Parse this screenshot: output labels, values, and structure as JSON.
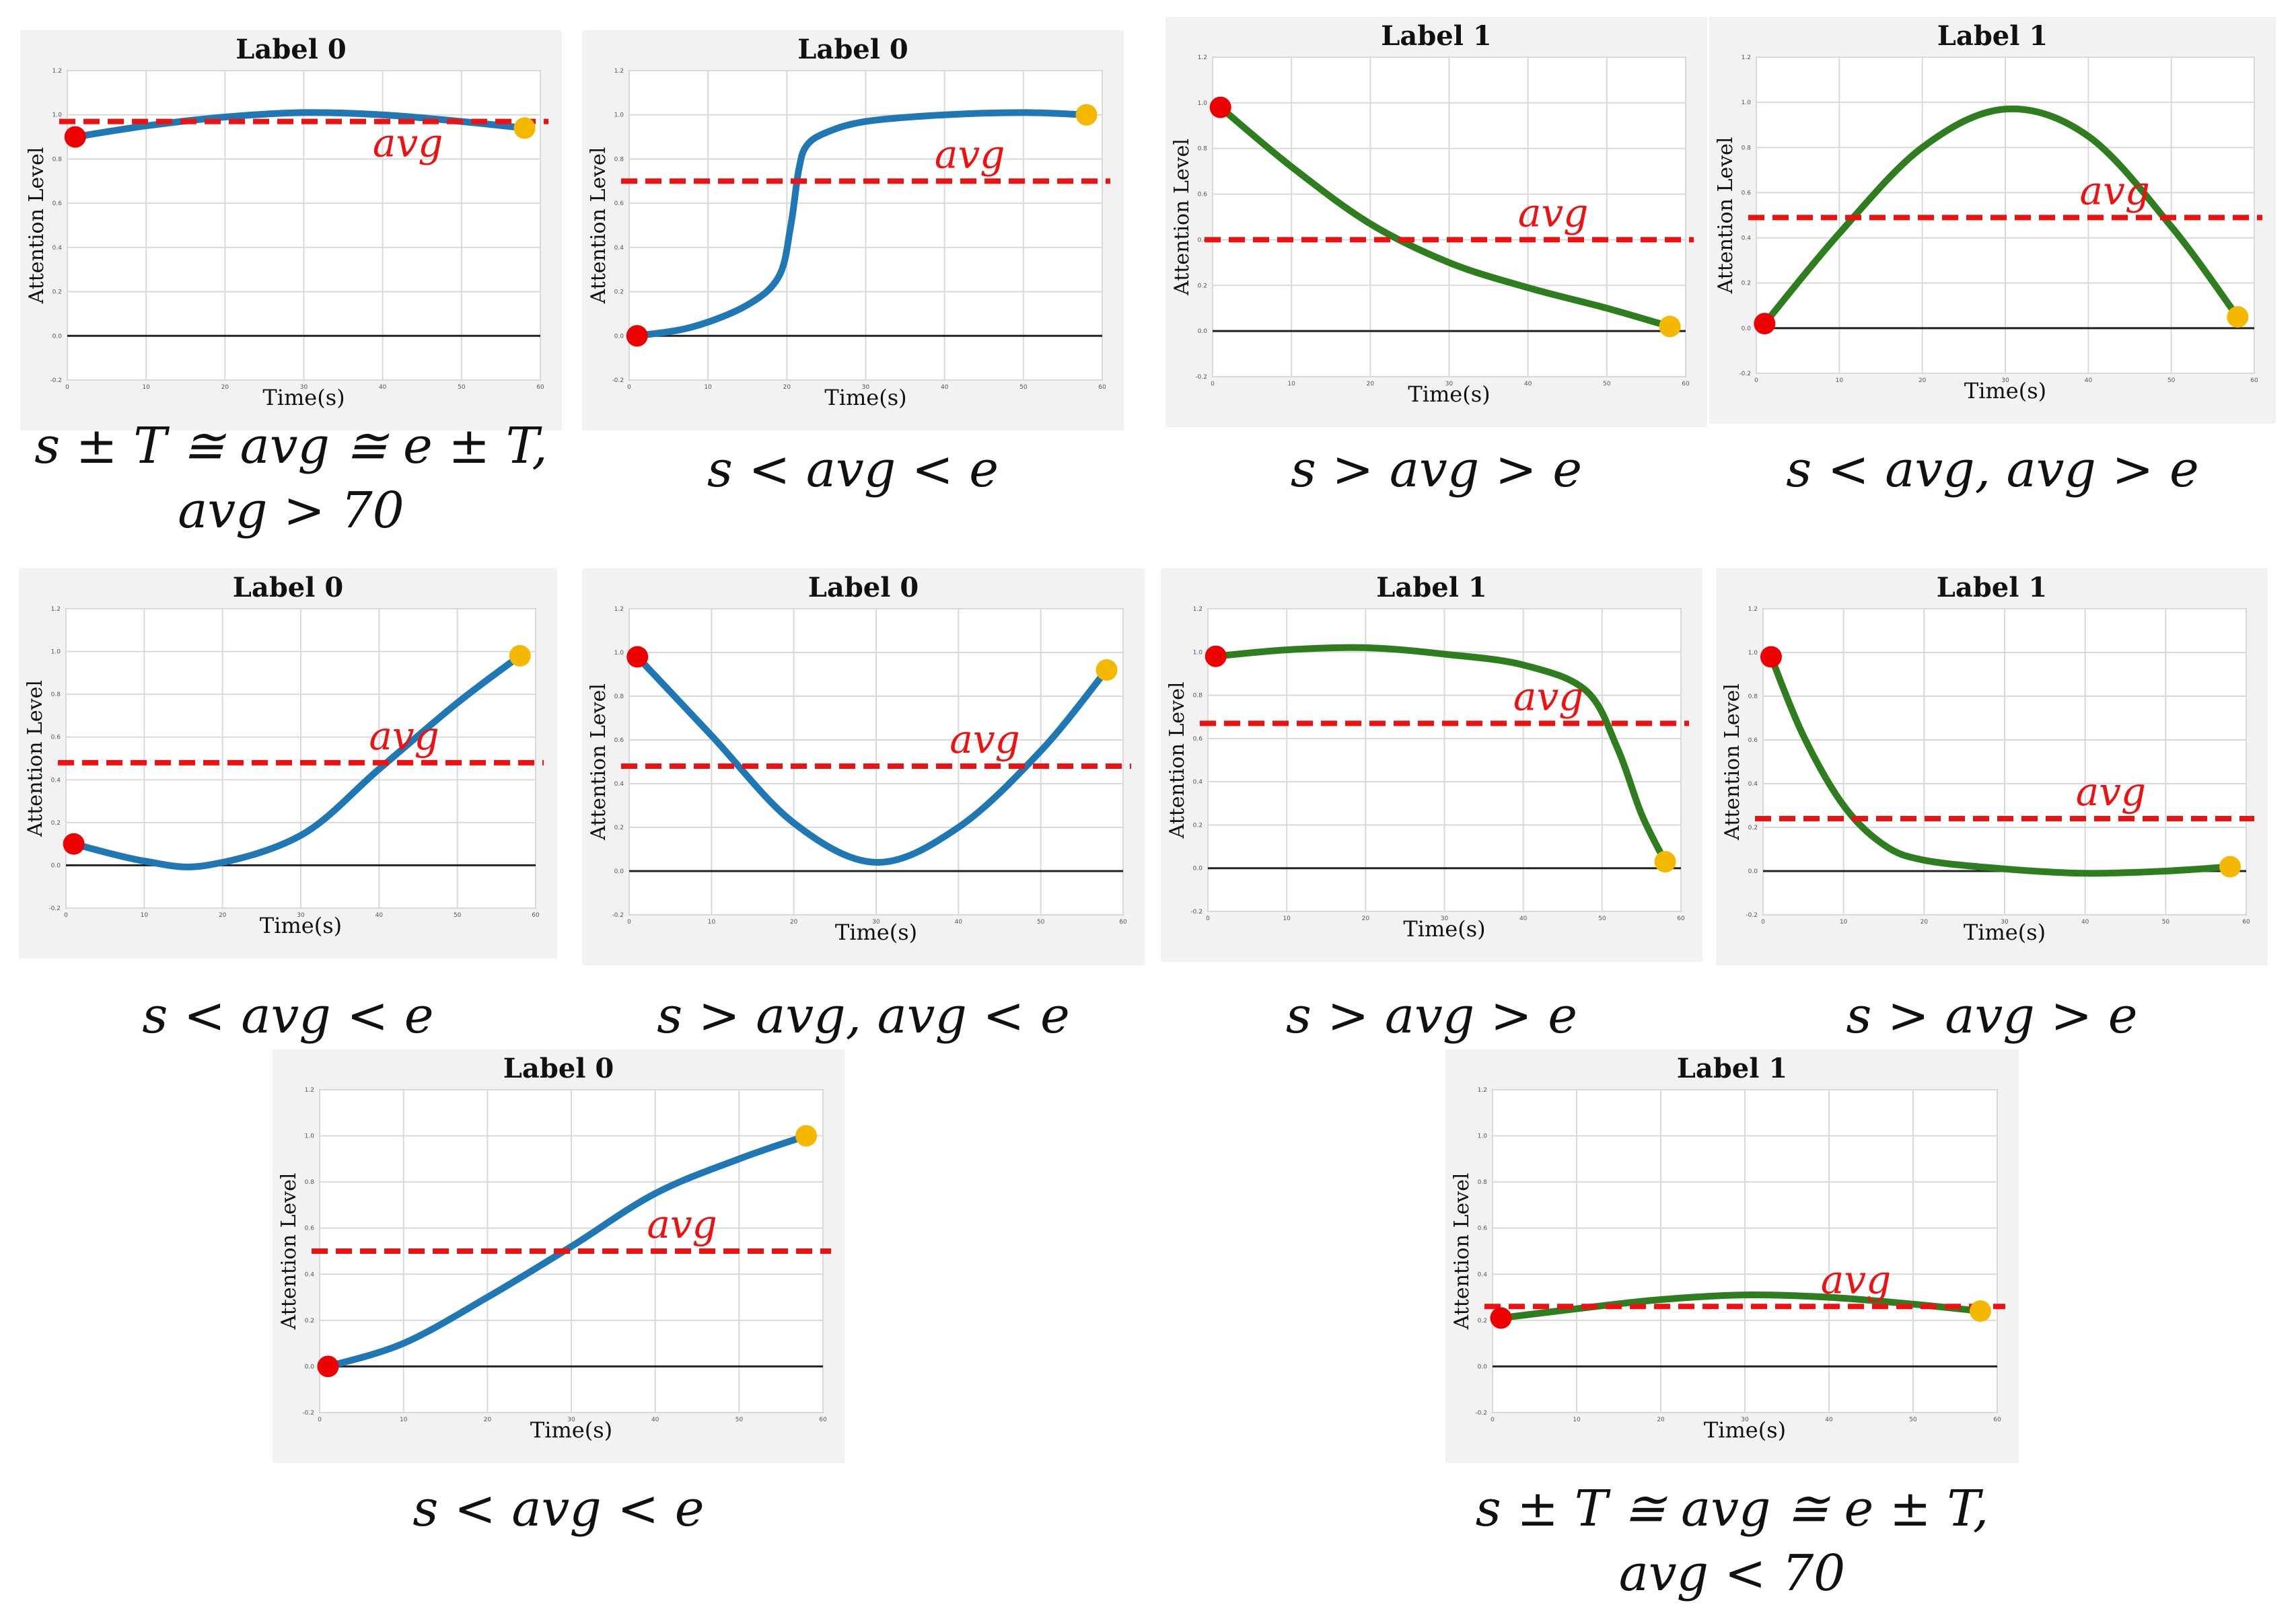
{
  "colors": {
    "label0_curve": "#1f77b4",
    "label1_curve": "#2e7d1e",
    "avg_line": "#ee1111",
    "start_dot": "#ee0000",
    "end_dot": "#f5b800",
    "panel_bg": "#f2f2f2",
    "grid": "#d9d9d9"
  },
  "common": {
    "ylabel": "Attention Level",
    "xlabel": "Time(s)",
    "avg_label": "avg",
    "xticks": [
      "0",
      "10",
      "20",
      "30",
      "40",
      "50",
      "60"
    ],
    "yticks": [
      "-0.2",
      "0.0",
      "0.2",
      "0.4",
      "0.6",
      "0.8",
      "1.0",
      "1.2"
    ]
  },
  "chart_data": [
    {
      "type": "line",
      "title": "Label 0",
      "label": 0,
      "xlabel": "Time(s)",
      "ylabel": "Attention Level",
      "xlim": [
        0,
        60
      ],
      "ylim": [
        -0.2,
        1.2
      ],
      "avg": 0.97,
      "series": [
        {
          "name": "attention",
          "x": [
            1,
            10,
            20,
            30,
            40,
            50,
            58
          ],
          "y": [
            0.9,
            0.95,
            0.99,
            1.01,
            1.0,
            0.97,
            0.94
          ]
        }
      ],
      "start": {
        "x": 1,
        "y": 0.9
      },
      "end": {
        "x": 58,
        "y": 0.94
      },
      "condition": [
        "s ± T ≅ avg ≅ e ± T,",
        "avg > 70"
      ]
    },
    {
      "type": "line",
      "title": "Label  0",
      "label": 0,
      "xlabel": "Time(s)",
      "ylabel": "Attention Level",
      "xlim": [
        0,
        60
      ],
      "ylim": [
        -0.2,
        1.2
      ],
      "avg": 0.7,
      "series": [
        {
          "name": "attention",
          "x": [
            1,
            8,
            15,
            19,
            20.5,
            21.5,
            22.5,
            25,
            30,
            40,
            50,
            58
          ],
          "y": [
            0.0,
            0.04,
            0.14,
            0.27,
            0.5,
            0.75,
            0.86,
            0.92,
            0.97,
            1.0,
            1.01,
            1.0
          ]
        }
      ],
      "start": {
        "x": 1,
        "y": 0.0
      },
      "end": {
        "x": 58,
        "y": 1.0
      },
      "condition": [
        "s < avg < e"
      ]
    },
    {
      "type": "line",
      "title": "Label 1",
      "label": 1,
      "xlabel": "Time(s)",
      "ylabel": "Attention Level",
      "xlim": [
        0,
        60
      ],
      "ylim": [
        -0.2,
        1.2
      ],
      "avg": 0.4,
      "series": [
        {
          "name": "attention",
          "x": [
            1,
            10,
            20,
            30,
            40,
            50,
            58
          ],
          "y": [
            0.98,
            0.72,
            0.47,
            0.3,
            0.19,
            0.1,
            0.02
          ]
        }
      ],
      "start": {
        "x": 1,
        "y": 0.98
      },
      "end": {
        "x": 58,
        "y": 0.02
      },
      "condition": [
        "s > avg > e"
      ]
    },
    {
      "type": "line",
      "title": "Label 1",
      "label": 1,
      "xlabel": "Time(s)",
      "ylabel": "Attention Level",
      "xlim": [
        0,
        60
      ],
      "ylim": [
        -0.2,
        1.2
      ],
      "avg": 0.49,
      "series": [
        {
          "name": "attention",
          "x": [
            1,
            10,
            20,
            30,
            40,
            50,
            58
          ],
          "y": [
            0.02,
            0.42,
            0.8,
            0.97,
            0.85,
            0.45,
            0.05
          ]
        }
      ],
      "start": {
        "x": 1,
        "y": 0.02
      },
      "end": {
        "x": 58,
        "y": 0.05
      },
      "condition": [
        "s < avg, avg > e"
      ]
    },
    {
      "type": "line",
      "title": "Label 0",
      "label": 0,
      "xlabel": "Time(s)",
      "ylabel": "Attention Level",
      "xlim": [
        0,
        60
      ],
      "ylim": [
        -0.2,
        1.2
      ],
      "avg": 0.48,
      "series": [
        {
          "name": "attention",
          "x": [
            1,
            10,
            18,
            30,
            40,
            50,
            58
          ],
          "y": [
            0.1,
            0.02,
            0.0,
            0.14,
            0.45,
            0.76,
            0.98
          ]
        }
      ],
      "start": {
        "x": 1,
        "y": 0.1
      },
      "end": {
        "x": 58,
        "y": 0.98
      },
      "condition": [
        "s < avg < e"
      ]
    },
    {
      "type": "line",
      "title": "Label  0",
      "label": 0,
      "xlabel": "Time(s)",
      "ylabel": "Attention Level",
      "xlim": [
        0,
        60
      ],
      "ylim": [
        -0.2,
        1.2
      ],
      "avg": 0.48,
      "series": [
        {
          "name": "attention",
          "x": [
            1,
            10,
            20,
            30,
            40,
            50,
            58
          ],
          "y": [
            0.98,
            0.62,
            0.22,
            0.04,
            0.2,
            0.55,
            0.92
          ]
        }
      ],
      "start": {
        "x": 1,
        "y": 0.98
      },
      "end": {
        "x": 58,
        "y": 0.92
      },
      "condition": [
        "s > avg, avg < e"
      ]
    },
    {
      "type": "line",
      "title": "Label 1",
      "label": 1,
      "xlabel": "Time(s)",
      "ylabel": "Attention Level",
      "xlim": [
        0,
        60
      ],
      "ylim": [
        -0.2,
        1.2
      ],
      "avg": 0.67,
      "series": [
        {
          "name": "attention",
          "x": [
            1,
            10,
            20,
            30,
            40,
            48,
            52,
            55,
            58
          ],
          "y": [
            0.98,
            1.01,
            1.02,
            0.99,
            0.94,
            0.82,
            0.55,
            0.25,
            0.03
          ]
        }
      ],
      "start": {
        "x": 1,
        "y": 0.98
      },
      "end": {
        "x": 58,
        "y": 0.03
      },
      "condition": [
        "s > avg > e"
      ]
    },
    {
      "type": "line",
      "title": "Label 1",
      "label": 1,
      "xlabel": "Time(s)",
      "ylabel": "Attention Level",
      "xlim": [
        0,
        60
      ],
      "ylim": [
        -0.2,
        1.2
      ],
      "avg": 0.24,
      "series": [
        {
          "name": "attention",
          "x": [
            1,
            5,
            10,
            15,
            20,
            30,
            40,
            50,
            58
          ],
          "y": [
            0.98,
            0.62,
            0.3,
            0.12,
            0.05,
            0.01,
            -0.01,
            0.0,
            0.02
          ]
        }
      ],
      "start": {
        "x": 1,
        "y": 0.98
      },
      "end": {
        "x": 58,
        "y": 0.02
      },
      "condition": [
        "s > avg > e"
      ]
    },
    {
      "type": "line",
      "title": "Label 0",
      "label": 0,
      "xlabel": "Time(s)",
      "ylabel": "Attention Level",
      "xlim": [
        0,
        60
      ],
      "ylim": [
        -0.2,
        1.2
      ],
      "avg": 0.5,
      "series": [
        {
          "name": "attention",
          "x": [
            1,
            10,
            20,
            30,
            40,
            50,
            58
          ],
          "y": [
            0.0,
            0.1,
            0.3,
            0.52,
            0.75,
            0.9,
            1.0
          ]
        }
      ],
      "start": {
        "x": 1,
        "y": 0.0
      },
      "end": {
        "x": 58,
        "y": 1.0
      },
      "condition": [
        "s < avg < e"
      ]
    },
    {
      "type": "line",
      "title": "Label 1",
      "label": 1,
      "xlabel": "Time(s)",
      "ylabel": "Attention Level",
      "xlim": [
        0,
        60
      ],
      "ylim": [
        -0.2,
        1.2
      ],
      "avg": 0.26,
      "series": [
        {
          "name": "attention",
          "x": [
            1,
            10,
            20,
            30,
            40,
            50,
            58
          ],
          "y": [
            0.21,
            0.25,
            0.29,
            0.31,
            0.3,
            0.27,
            0.24
          ]
        }
      ],
      "start": {
        "x": 1,
        "y": 0.21
      },
      "end": {
        "x": 58,
        "y": 0.24
      },
      "condition": [
        "s ± T ≅ avg ≅ e ± T,",
        "avg < 70"
      ]
    }
  ]
}
